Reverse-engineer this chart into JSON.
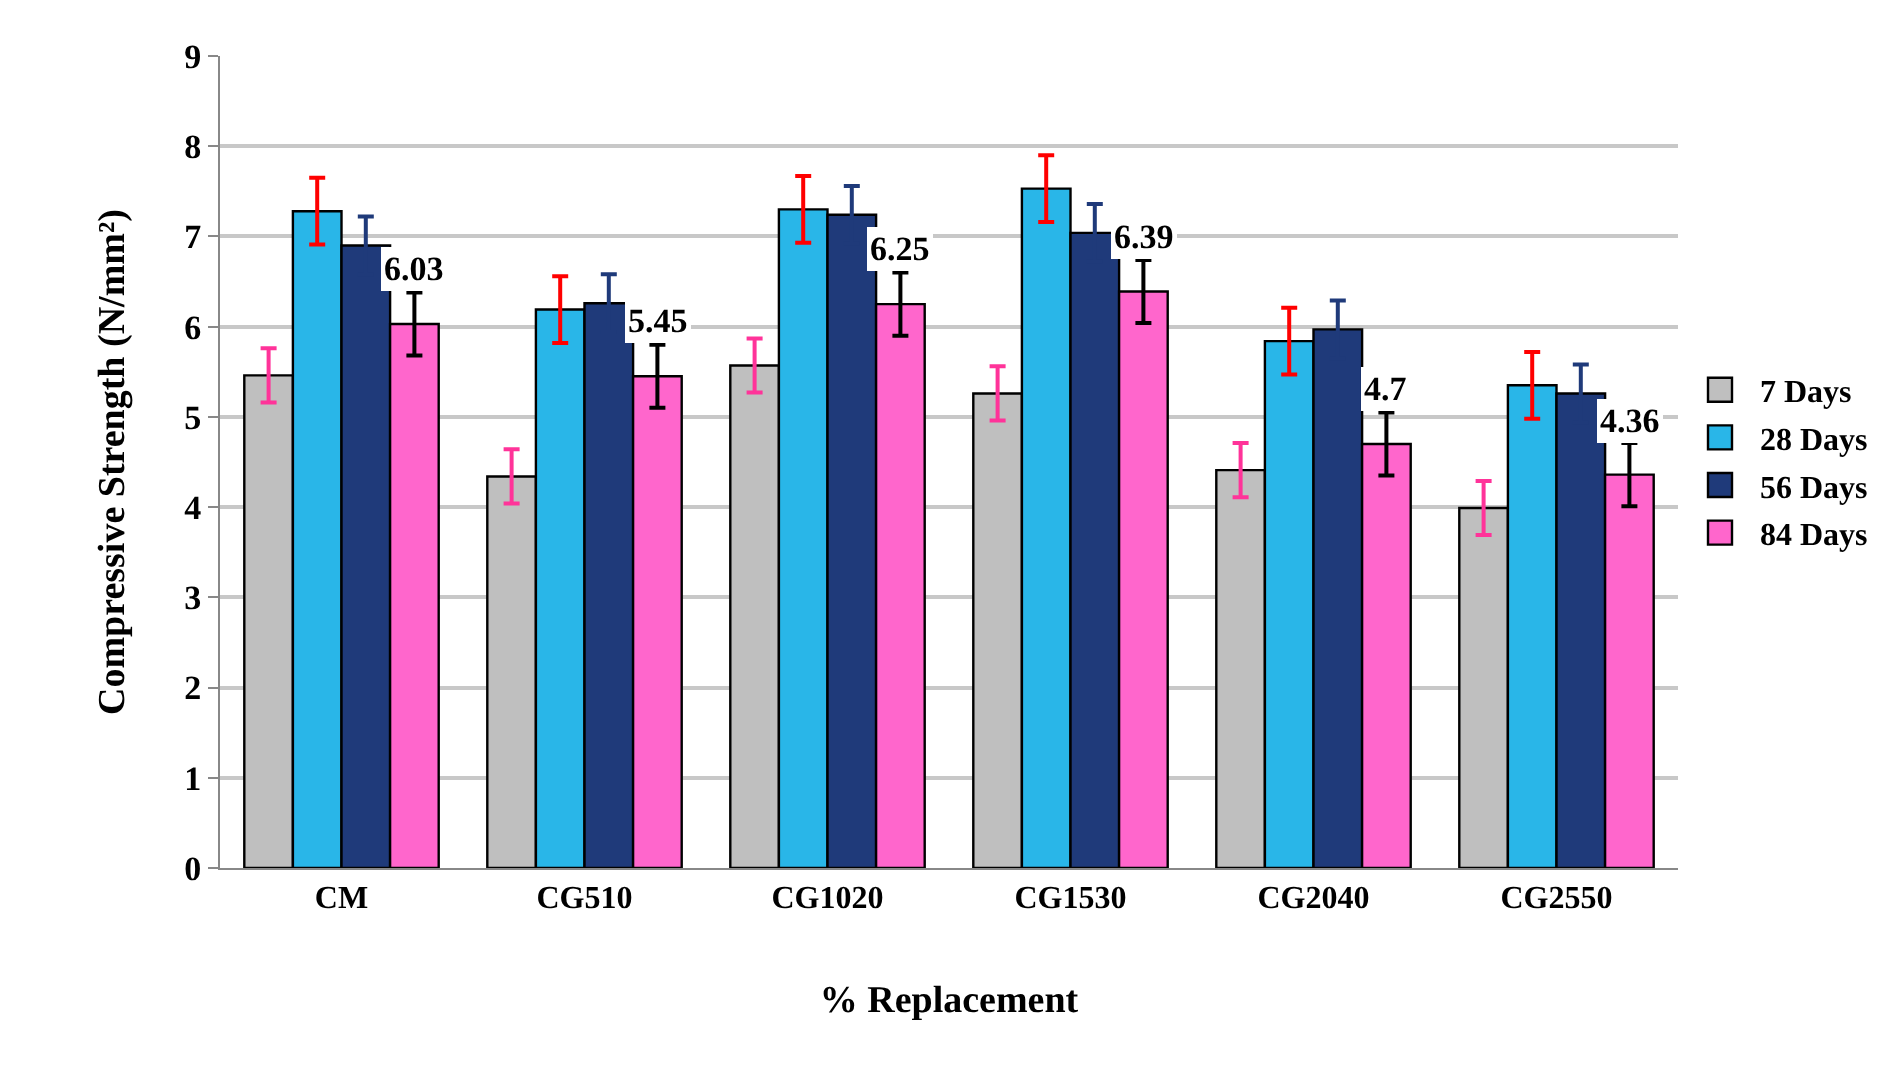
{
  "chart_data": {
    "type": "bar",
    "xlabel": "% Replacement",
    "ylabel": "Compressive Strength (N/mm²)",
    "categories": [
      "CM",
      "CG510",
      "CG1020",
      "CG1530",
      "CG2040",
      "CG2550"
    ],
    "series": [
      {
        "name": "7 Days",
        "color": "#bfbfbf",
        "values": [
          5.46,
          4.34,
          5.57,
          5.26,
          4.41,
          3.99
        ],
        "errors": [
          0.3,
          0.3,
          0.3,
          0.3,
          0.3,
          0.3
        ]
      },
      {
        "name": "28 Days",
        "color": "#29b6e8",
        "values": [
          7.28,
          6.19,
          7.3,
          7.53,
          5.84,
          5.35
        ],
        "errors": [
          0.37,
          0.37,
          0.37,
          0.37,
          0.37,
          0.37
        ]
      },
      {
        "name": "56 Days",
        "color": "#1f3a7a",
        "values": [
          6.9,
          6.26,
          7.24,
          7.04,
          5.97,
          5.26
        ],
        "errors": [
          0.32,
          0.32,
          0.32,
          0.32,
          0.32,
          0.32
        ]
      },
      {
        "name": "84 Days",
        "color": "#ff66cc",
        "values": [
          6.03,
          5.45,
          6.25,
          6.39,
          4.7,
          4.36
        ],
        "errors": [
          0.35,
          0.35,
          0.35,
          0.35,
          0.35,
          0.35
        ],
        "value_labels": [
          "6.03",
          "5.45",
          "6.25",
          "6.39",
          "4.7",
          "4.36"
        ]
      }
    ],
    "ylim": [
      0,
      9
    ],
    "yticks": [
      0,
      1,
      2,
      3,
      4,
      5,
      6,
      7,
      8,
      9
    ],
    "grid": "y",
    "legend": "right"
  }
}
